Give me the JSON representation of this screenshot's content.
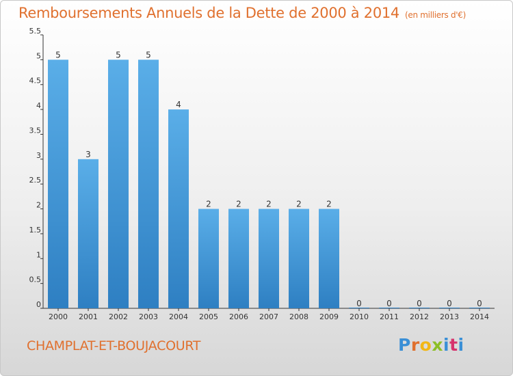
{
  "header": {
    "title": "Remboursements Annuels de la Dette de 2000 à 2014",
    "unit_note": "(en milliers d'€)"
  },
  "footer": {
    "commune": "CHAMPLAT-ET-BOUJACOURT",
    "brand": "Proxiti",
    "brand_colors": [
      "#3a8fd6",
      "#e0702e",
      "#f2b716",
      "#8cbf26",
      "#3a8fd6",
      "#d6336c",
      "#3a8fd6"
    ]
  },
  "colors": {
    "title": "#e0702e",
    "bar_top": "#5aaee8",
    "bar_bottom": "#2e7fc2"
  },
  "chart_data": {
    "type": "bar",
    "categories": [
      "2000",
      "2001",
      "2002",
      "2003",
      "2004",
      "2005",
      "2006",
      "2007",
      "2008",
      "2009",
      "2010",
      "2011",
      "2012",
      "2013",
      "2014"
    ],
    "values": [
      5,
      3,
      5,
      5,
      4,
      2,
      2,
      2,
      2,
      2,
      0,
      0,
      0,
      0,
      0
    ],
    "data_labels": [
      "5",
      "3",
      "5",
      "5",
      "4",
      "2",
      "2",
      "2",
      "2",
      "2",
      "0",
      "0",
      "0",
      "0",
      "0"
    ],
    "title": "Remboursements Annuels de la Dette de 2000 à 2014",
    "xlabel": "",
    "ylabel": "",
    "ylim": [
      0,
      5.5
    ],
    "yticks": [
      0,
      0.5,
      1,
      1.5,
      2,
      2.5,
      3,
      3.5,
      4,
      4.5,
      5,
      5.5
    ],
    "ytick_labels": [
      "0",
      "0.5",
      "1",
      "1.5",
      "2",
      "2.5",
      "3",
      "3.5",
      "4",
      "4.5",
      "5",
      "5.5"
    ],
    "grid": false,
    "legend": "none"
  }
}
